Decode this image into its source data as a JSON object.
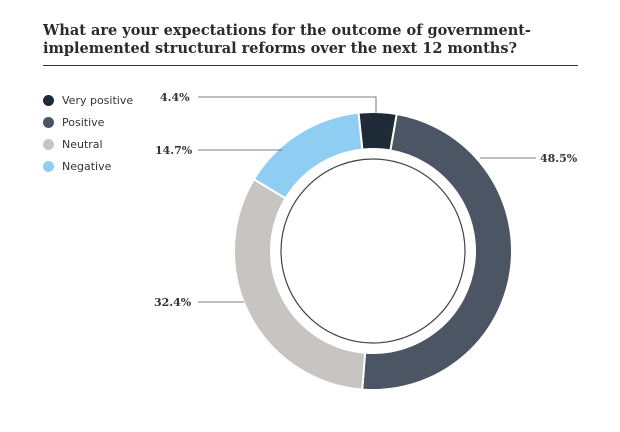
{
  "chart_data": {
    "type": "pie",
    "title": "What are your expectations for the outcome of government-implemented structural reforms over the next 12 months?",
    "categories": [
      "Very positive",
      "Positive",
      "Neutral",
      "Negative"
    ],
    "values": [
      4.4,
      48.5,
      32.4,
      14.7
    ],
    "value_labels": [
      "4.4%",
      "48.5%",
      "32.4%",
      "14.7%"
    ],
    "colors": [
      "#1f2a37",
      "#4b5563",
      "#c8c4c1",
      "#8fcdf3"
    ],
    "legend_position": "top-left",
    "style": "donut"
  }
}
